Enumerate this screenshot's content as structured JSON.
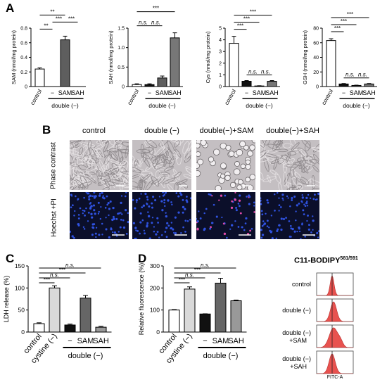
{
  "panels": {
    "A": "A",
    "B": "B",
    "C": "C",
    "D": "D"
  },
  "panelA": {
    "group_label": "double (−)",
    "tick_control": "control",
    "tick_minus": "−",
    "tick_sam": "SAM",
    "tick_sah": "SAH",
    "charts": [
      {
        "ylabel": "SAM (nmol/mg protein)",
        "yticks": [
          "0",
          "0.2",
          "0.4",
          "0.6",
          "0.8"
        ],
        "ylim": [
          0,
          0.8
        ],
        "values": [
          0.24,
          0.0,
          0.64,
          0.0
        ],
        "errors": [
          0.015,
          0.0,
          0.05,
          0.0
        ],
        "brackets": [
          {
            "from": 0,
            "to": 1,
            "label": "**",
            "level": 0
          },
          {
            "from": 0,
            "to": 2,
            "label": "**",
            "level": 2
          },
          {
            "from": 1,
            "to": 2,
            "label": "***",
            "level": 1
          },
          {
            "from": 2,
            "to": 3,
            "label": "***",
            "level": 1
          }
        ]
      },
      {
        "ylabel": "SAH (nmol/mg protein)",
        "yticks": [
          "0",
          "0.5",
          "1.0",
          "1.5"
        ],
        "ylim": [
          0,
          1.5
        ],
        "values": [
          0.05,
          0.05,
          0.22,
          1.25
        ],
        "errors": [
          0.02,
          0.02,
          0.05,
          0.13
        ],
        "brackets": [
          {
            "from": 0,
            "to": 1,
            "label": "n.s.",
            "level": 0
          },
          {
            "from": 1,
            "to": 2,
            "label": "n.s.",
            "level": 0
          },
          {
            "from": 0,
            "to": 3,
            "label": "***",
            "level": 2
          }
        ]
      },
      {
        "ylabel": "Cys (nmol/mg protein)",
        "yticks": [
          "0",
          "1",
          "2",
          "3",
          "4",
          "5"
        ],
        "ylim": [
          0,
          5
        ],
        "values": [
          3.7,
          0.45,
          0.05,
          0.45
        ],
        "errors": [
          0.6,
          0.06,
          0.02,
          0.06
        ],
        "brackets": [
          {
            "from": 0,
            "to": 1,
            "label": "***",
            "level": 0
          },
          {
            "from": 0,
            "to": 2,
            "label": "***",
            "level": 1
          },
          {
            "from": 0,
            "to": 3,
            "label": "***",
            "level": 2
          },
          {
            "from": 1,
            "to": 2,
            "label": "n.s.",
            "level": -1
          },
          {
            "from": 2,
            "to": 3,
            "label": "n.s.",
            "level": -1
          }
        ]
      },
      {
        "ylabel": "GSH (nmol/mg protein)",
        "yticks": [
          "0",
          "20",
          "40",
          "60",
          "80"
        ],
        "ylim": [
          0,
          80
        ],
        "values": [
          63,
          3.5,
          1.5,
          3.5
        ],
        "errors": [
          2.5,
          0.6,
          0.4,
          0.6
        ],
        "brackets": [
          {
            "from": 0,
            "to": 1,
            "label": "***",
            "level": 0
          },
          {
            "from": 0,
            "to": 2,
            "label": "***",
            "level": 1
          },
          {
            "from": 0,
            "to": 3,
            "label": "***",
            "level": 2
          },
          {
            "from": 1,
            "to": 2,
            "label": "n.s.",
            "level": -1
          },
          {
            "from": 2,
            "to": 3,
            "label": "n.s.",
            "level": -1
          }
        ]
      }
    ]
  },
  "panelB": {
    "columns": [
      "control",
      "double (−)",
      "double(−)+SAM",
      "double(−)+SAH"
    ],
    "rows": [
      "Phase contrast",
      "Hoechst +PI"
    ]
  },
  "panelC": {
    "ylabel": "LDH release (%)",
    "yticks": [
      "0",
      "50",
      "100",
      "150"
    ],
    "ylim": [
      0,
      150
    ],
    "categories": [
      "control",
      "cystine (−)",
      "−",
      "SAM",
      "SAH"
    ],
    "values": [
      19,
      100,
      16,
      77,
      11
    ],
    "errors": [
      2,
      5,
      2,
      6,
      2
    ],
    "colors": [
      "#ffffff",
      "#d9d9d9",
      "#111111",
      "#666666",
      "#999999"
    ],
    "group_label": "double (−)",
    "brackets": [
      {
        "from": 0,
        "to": 1,
        "label": "***",
        "level": 0
      },
      {
        "from": 0,
        "to": 2,
        "label": "n.s.",
        "level": 1
      },
      {
        "from": 0,
        "to": 3,
        "label": "***",
        "level": 2
      },
      {
        "from": 0,
        "to": 4,
        "label": "n.s.",
        "level": 3
      }
    ]
  },
  "panelD": {
    "ylabel": "Relative fluorescence (%)",
    "yticks": [
      "0",
      "100",
      "200",
      "300"
    ],
    "ylim": [
      0,
      300
    ],
    "categories": [
      "control",
      "cystine (−)",
      "−",
      "SAM",
      "SAH"
    ],
    "values": [
      100,
      195,
      82,
      222,
      142
    ],
    "errors": [
      2,
      10,
      1,
      22,
      3
    ],
    "colors": [
      "#ffffff",
      "#d9d9d9",
      "#111111",
      "#666666",
      "#999999"
    ],
    "group_label": "double (−)",
    "brackets": [
      {
        "from": 0,
        "to": 1,
        "label": "***",
        "level": 0
      },
      {
        "from": 0,
        "to": 2,
        "label": "n.s.",
        "level": 1
      },
      {
        "from": 0,
        "to": 3,
        "label": "***",
        "level": 2
      },
      {
        "from": 0,
        "to": 4,
        "label": "n.s.",
        "level": 3
      }
    ]
  },
  "flow": {
    "title": "C11-BODIPY",
    "title_sup": "581/591",
    "rows": [
      {
        "label1": "control",
        "label2": ""
      },
      {
        "label1": "double (−)",
        "label2": ""
      },
      {
        "label1": "double (−)",
        "label2": "+SAM"
      },
      {
        "label1": "double (−)",
        "label2": "+SAH"
      }
    ],
    "xlabel": "FITC-A",
    "peak_color": "#e8524f"
  }
}
